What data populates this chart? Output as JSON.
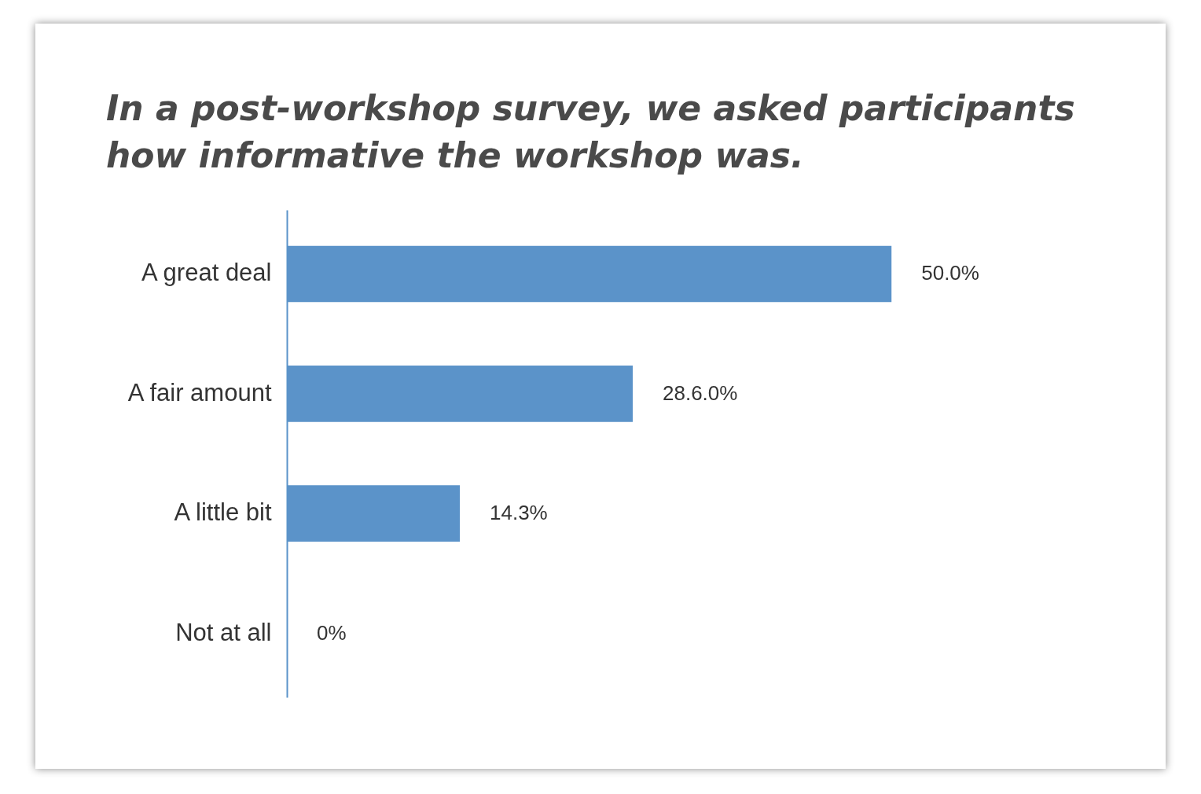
{
  "chart_data": {
    "type": "bar",
    "orientation": "horizontal",
    "title": "In a post-workshop survey, we asked participants how informative the workshop was.",
    "categories": [
      "A great deal",
      "A fair amount",
      "A little bit",
      "Not at all"
    ],
    "values": [
      50.0,
      28.6,
      14.3,
      0
    ],
    "value_labels": [
      "50.0%",
      "28.6.0%",
      "14.3%",
      "0%"
    ],
    "color": "#5b93c9"
  }
}
